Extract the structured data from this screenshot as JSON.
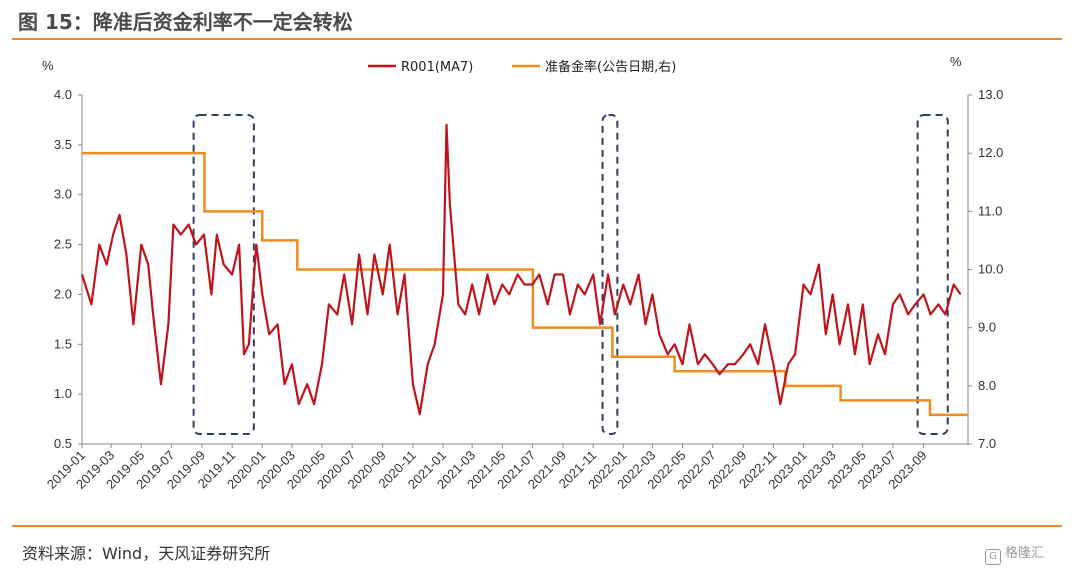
{
  "figure": {
    "title": "图 15：降准后资金利率不一定会转松",
    "source": "资料来源：Wind，天风证券研究所",
    "watermark": "格隆汇"
  },
  "chart_data": {
    "type": "line",
    "left_unit": "%",
    "right_unit": "%",
    "left_axis": {
      "min": 0.5,
      "max": 4.0,
      "ticks": [
        "0.5",
        "1.0",
        "1.5",
        "2.0",
        "2.5",
        "3.0",
        "3.5",
        "4.0"
      ]
    },
    "right_axis": {
      "min": 7.0,
      "max": 13.0,
      "ticks": [
        "7.0",
        "8.0",
        "9.0",
        "10.0",
        "11.0",
        "12.0",
        "13.0"
      ]
    },
    "x_axis": {
      "start": "2019-01",
      "end": "2023-11",
      "ticks": [
        "2019-01",
        "2019-03",
        "2019-05",
        "2019-07",
        "2019-09",
        "2019-11",
        "2020-01",
        "2020-03",
        "2020-05",
        "2020-07",
        "2020-09",
        "2020-11",
        "2021-01",
        "2021-03",
        "2021-05",
        "2021-07",
        "2021-09",
        "2021-11",
        "2022-01",
        "2022-03",
        "2022-05",
        "2022-07",
        "2022-09",
        "2022-11",
        "2023-01",
        "2023-03",
        "2023-05",
        "2023-07",
        "2023-09"
      ]
    },
    "legend": {
      "position": "top-center"
    },
    "colors": {
      "r001": "#c0141c",
      "rrr": "#f08c1e",
      "box": "#2e3f5c"
    },
    "series": [
      {
        "name": "R001(MA7)",
        "axis": "left",
        "x": [
          "2019-01-01",
          "2019-01-20",
          "2019-02-05",
          "2019-02-20",
          "2019-03-05",
          "2019-03-18",
          "2019-04-01",
          "2019-04-15",
          "2019-05-01",
          "2019-05-15",
          "2019-05-25",
          "2019-06-10",
          "2019-06-25",
          "2019-07-05",
          "2019-07-20",
          "2019-08-05",
          "2019-08-20",
          "2019-09-05",
          "2019-09-20",
          "2019-10-01",
          "2019-10-15",
          "2019-11-01",
          "2019-11-15",
          "2019-11-25",
          "2019-12-05",
          "2019-12-20",
          "2020-01-01",
          "2020-01-15",
          "2020-02-01",
          "2020-02-15",
          "2020-03-01",
          "2020-03-15",
          "2020-04-01",
          "2020-04-15",
          "2020-05-01",
          "2020-05-15",
          "2020-06-01",
          "2020-06-15",
          "2020-07-01",
          "2020-07-15",
          "2020-08-01",
          "2020-08-15",
          "2020-09-01",
          "2020-09-15",
          "2020-10-01",
          "2020-10-15",
          "2020-11-01",
          "2020-11-15",
          "2020-12-01",
          "2020-12-15",
          "2021-01-01",
          "2021-01-08",
          "2021-01-15",
          "2021-02-01",
          "2021-02-15",
          "2021-03-01",
          "2021-03-15",
          "2021-04-01",
          "2021-04-15",
          "2021-05-01",
          "2021-05-15",
          "2021-06-01",
          "2021-06-15",
          "2021-07-01",
          "2021-07-15",
          "2021-08-01",
          "2021-08-15",
          "2021-09-01",
          "2021-09-15",
          "2021-10-01",
          "2021-10-15",
          "2021-11-01",
          "2021-11-15",
          "2021-12-01",
          "2021-12-15",
          "2022-01-01",
          "2022-01-15",
          "2022-02-01",
          "2022-02-15",
          "2022-03-01",
          "2022-03-15",
          "2022-04-01",
          "2022-04-15",
          "2022-05-01",
          "2022-05-15",
          "2022-06-01",
          "2022-06-15",
          "2022-07-01",
          "2022-07-15",
          "2022-08-01",
          "2022-08-15",
          "2022-09-01",
          "2022-09-15",
          "2022-10-01",
          "2022-10-15",
          "2022-11-01",
          "2022-11-15",
          "2022-12-01",
          "2022-12-15",
          "2023-01-01",
          "2023-01-15",
          "2023-02-01",
          "2023-02-15",
          "2023-03-01",
          "2023-03-15",
          "2023-04-01",
          "2023-04-15",
          "2023-05-01",
          "2023-05-15",
          "2023-06-01",
          "2023-06-15",
          "2023-07-01",
          "2023-07-15",
          "2023-08-01",
          "2023-08-15",
          "2023-09-01",
          "2023-09-15",
          "2023-10-01",
          "2023-10-15",
          "2023-11-01",
          "2023-11-15"
        ],
        "values": [
          2.2,
          1.9,
          2.5,
          2.3,
          2.6,
          2.8,
          2.4,
          1.7,
          2.5,
          2.3,
          1.8,
          1.1,
          1.7,
          2.7,
          2.6,
          2.7,
          2.5,
          2.6,
          2.0,
          2.6,
          2.3,
          2.2,
          2.5,
          1.4,
          1.5,
          2.5,
          2.0,
          1.6,
          1.7,
          1.1,
          1.3,
          0.9,
          1.1,
          0.9,
          1.3,
          1.9,
          1.8,
          2.2,
          1.7,
          2.4,
          1.8,
          2.4,
          2.0,
          2.5,
          1.8,
          2.2,
          1.1,
          0.8,
          1.3,
          1.5,
          2.0,
          3.7,
          2.9,
          1.9,
          1.8,
          2.1,
          1.8,
          2.2,
          1.9,
          2.1,
          2.0,
          2.2,
          2.1,
          2.1,
          2.2,
          1.9,
          2.2,
          2.2,
          1.8,
          2.1,
          2.0,
          2.2,
          1.7,
          2.2,
          1.8,
          2.1,
          1.9,
          2.2,
          1.7,
          2.0,
          1.6,
          1.4,
          1.5,
          1.3,
          1.7,
          1.3,
          1.4,
          1.3,
          1.2,
          1.3,
          1.3,
          1.4,
          1.5,
          1.3,
          1.7,
          1.3,
          0.9,
          1.3,
          1.4,
          2.1,
          2.0,
          2.3,
          1.6,
          2.0,
          1.5,
          1.9,
          1.4,
          1.9,
          1.3,
          1.6,
          1.4,
          1.9,
          2.0,
          1.8,
          1.9,
          2.0,
          1.8,
          1.9,
          1.8,
          2.1,
          2.0
        ]
      },
      {
        "name": "准备金率(公告日期,右)",
        "axis": "right",
        "step": true,
        "x": [
          "2019-01-01",
          "2019-09-06",
          "2019-12-01",
          "2020-01-01",
          "2020-01-10",
          "2020-03-12",
          "2021-07-02",
          "2021-11-30",
          "2021-12-10",
          "2022-04-15",
          "2022-11-25",
          "2023-03-17",
          "2023-09-14",
          "2023-11-30"
        ],
        "values": [
          12.0,
          11.0,
          11.0,
          10.5,
          10.5,
          10.0,
          9.0,
          9.0,
          8.5,
          8.25,
          8.0,
          7.75,
          7.5,
          7.5
        ]
      }
    ],
    "highlight_boxes": [
      {
        "x_start": "2019-08-15",
        "x_end": "2019-12-15",
        "y_top": 3.8,
        "y_bottom": 0.6
      },
      {
        "x_start": "2021-11-20",
        "x_end": "2021-12-20",
        "y_top": 3.8,
        "y_bottom": 0.6
      },
      {
        "x_start": "2023-08-20",
        "x_end": "2023-10-20",
        "y_top": 3.8,
        "y_bottom": 0.6
      }
    ]
  }
}
